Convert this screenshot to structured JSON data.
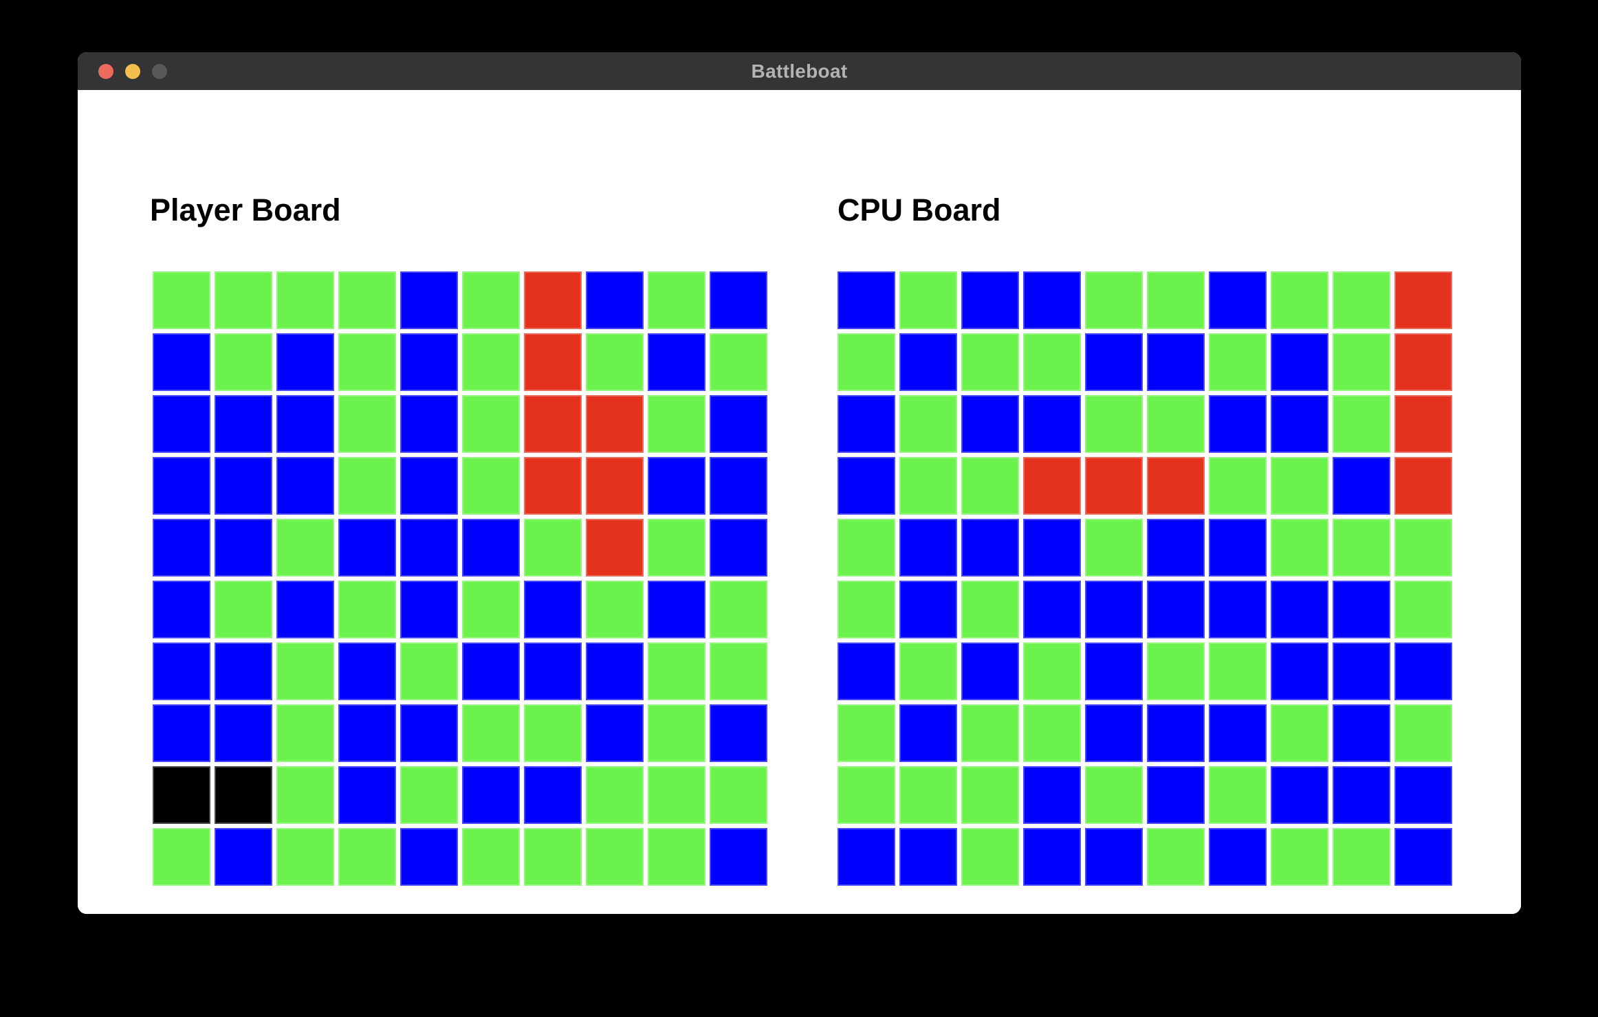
{
  "page": {
    "background": "#000000"
  },
  "window": {
    "title": "Battleboat",
    "titlebar_color": "#343434",
    "title_text_color": "#b3b3b3",
    "body_color": "#ffffff"
  },
  "traffic_lights": [
    {
      "name": "close",
      "color": "#EC6A5E"
    },
    {
      "name": "minimize",
      "color": "#F5BF4E"
    },
    {
      "name": "zoom",
      "color": "#575757"
    }
  ],
  "cell_colors": {
    "G": "#6CF24D",
    "B": "#0000FF",
    "R": "#E4321F",
    "K": "#000000"
  },
  "boards": [
    {
      "id": "player",
      "title": "Player Board",
      "cells_interactable": false,
      "cells": [
        [
          "G",
          "G",
          "G",
          "G",
          "B",
          "G",
          "R",
          "B",
          "G",
          "B"
        ],
        [
          "B",
          "G",
          "B",
          "G",
          "B",
          "G",
          "R",
          "G",
          "B",
          "G"
        ],
        [
          "B",
          "B",
          "B",
          "G",
          "B",
          "G",
          "R",
          "R",
          "G",
          "B"
        ],
        [
          "B",
          "B",
          "B",
          "G",
          "B",
          "G",
          "R",
          "R",
          "B",
          "B"
        ],
        [
          "B",
          "B",
          "G",
          "B",
          "B",
          "B",
          "G",
          "R",
          "G",
          "B"
        ],
        [
          "B",
          "G",
          "B",
          "G",
          "B",
          "G",
          "B",
          "G",
          "B",
          "G"
        ],
        [
          "B",
          "B",
          "G",
          "B",
          "G",
          "B",
          "B",
          "B",
          "G",
          "G"
        ],
        [
          "B",
          "B",
          "G",
          "B",
          "B",
          "G",
          "G",
          "B",
          "G",
          "B"
        ],
        [
          "K",
          "K",
          "G",
          "B",
          "G",
          "B",
          "B",
          "G",
          "G",
          "G"
        ],
        [
          "G",
          "B",
          "G",
          "G",
          "B",
          "G",
          "G",
          "G",
          "G",
          "B"
        ]
      ]
    },
    {
      "id": "cpu",
      "title": "CPU Board",
      "cells_interactable": true,
      "cells": [
        [
          "B",
          "G",
          "B",
          "B",
          "G",
          "G",
          "B",
          "G",
          "G",
          "R"
        ],
        [
          "G",
          "B",
          "G",
          "G",
          "B",
          "B",
          "G",
          "B",
          "G",
          "R"
        ],
        [
          "B",
          "G",
          "B",
          "B",
          "G",
          "G",
          "B",
          "B",
          "G",
          "R"
        ],
        [
          "B",
          "G",
          "G",
          "R",
          "R",
          "R",
          "G",
          "G",
          "B",
          "R"
        ],
        [
          "G",
          "B",
          "B",
          "B",
          "G",
          "B",
          "B",
          "G",
          "G",
          "G"
        ],
        [
          "G",
          "B",
          "G",
          "B",
          "B",
          "B",
          "B",
          "B",
          "B",
          "G"
        ],
        [
          "B",
          "G",
          "B",
          "G",
          "B",
          "G",
          "G",
          "B",
          "B",
          "B"
        ],
        [
          "G",
          "B",
          "G",
          "G",
          "B",
          "B",
          "B",
          "G",
          "B",
          "G"
        ],
        [
          "G",
          "G",
          "G",
          "B",
          "G",
          "B",
          "G",
          "B",
          "B",
          "B"
        ],
        [
          "B",
          "B",
          "G",
          "B",
          "B",
          "G",
          "B",
          "G",
          "G",
          "B"
        ]
      ]
    }
  ]
}
